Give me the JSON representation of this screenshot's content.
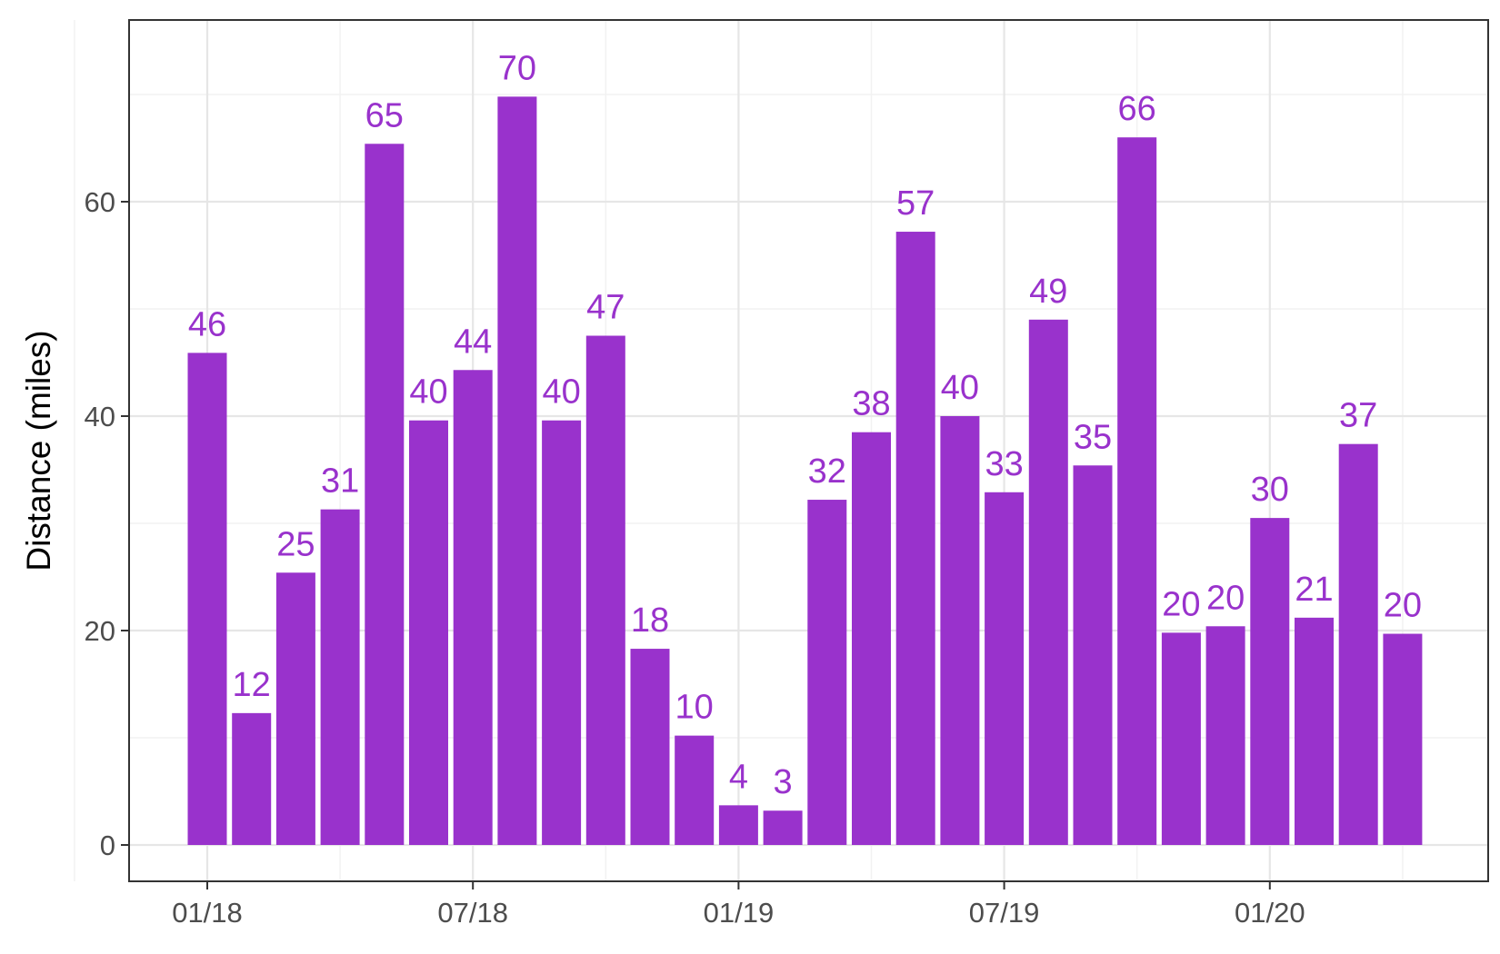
{
  "chart_data": {
    "type": "bar",
    "ylabel": "Distance (miles)",
    "xlabel": "",
    "ylim": [
      0,
      75
    ],
    "yticks": [
      0,
      20,
      40,
      60
    ],
    "x_tick_labels": [
      "01/18",
      "07/18",
      "01/19",
      "07/19",
      "01/20"
    ],
    "x_tick_months": [
      "2018-01",
      "2018-07",
      "2019-01",
      "2019-07",
      "2020-01"
    ],
    "grid": true,
    "bar_color": "#9932CC",
    "label_color": "#9932CC",
    "categories": [
      "2018-01",
      "2018-02",
      "2018-03",
      "2018-04",
      "2018-05",
      "2018-06",
      "2018-07",
      "2018-08",
      "2018-09",
      "2018-10",
      "2018-11",
      "2018-12",
      "2019-01",
      "2019-02",
      "2019-03",
      "2019-04",
      "2019-05",
      "2019-06",
      "2019-07",
      "2019-08",
      "2019-09",
      "2019-10",
      "2019-11",
      "2019-12",
      "2020-01",
      "2020-02",
      "2020-03",
      "2020-04"
    ],
    "values": [
      45.9,
      12.3,
      25.4,
      31.3,
      65.4,
      39.6,
      44.3,
      69.8,
      39.6,
      47.5,
      18.3,
      10.2,
      3.7,
      3.2,
      32.2,
      38.5,
      57.2,
      40.0,
      32.9,
      49.0,
      35.4,
      66.0,
      19.8,
      20.4,
      30.5,
      21.2,
      37.4,
      19.7
    ],
    "labels": [
      "46",
      "12",
      "25",
      "31",
      "65",
      "40",
      "44",
      "70",
      "40",
      "47",
      "18",
      "10",
      "4",
      "3",
      "32",
      "38",
      "57",
      "40",
      "33",
      "49",
      "35",
      "66",
      "20",
      "20",
      "30",
      "21",
      "37",
      "20"
    ]
  }
}
